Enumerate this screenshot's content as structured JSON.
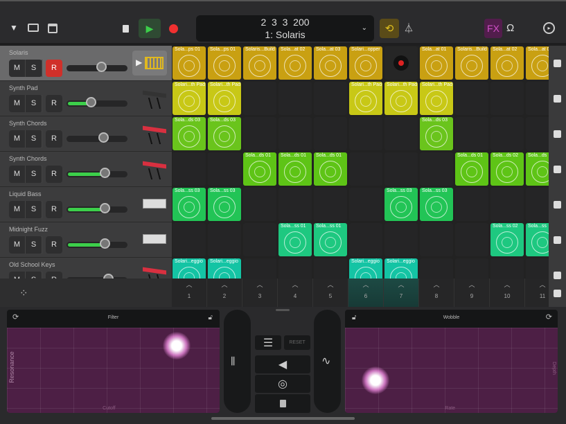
{
  "toolbar": {
    "icons": [
      "browser-triangle-icon",
      "tray-icon",
      "view-icon",
      "stop-icon",
      "play-icon",
      "record-icon",
      "loop-icon",
      "metronome-icon",
      "fx-icon",
      "headphones-icon",
      "settings-icon"
    ],
    "fx_label": "FX",
    "position": "2  3  3  200",
    "song": "1: Solaris",
    "accent": "#3ccf4a"
  },
  "tracks": [
    {
      "name": "Solaris",
      "m": "M",
      "s": "S",
      "r": "R",
      "rec_on": true,
      "volume": 0.57,
      "meter": 0,
      "color": "#c9a012",
      "instrument": "drum-machine-icon"
    },
    {
      "name": "Synth Pad",
      "m": "M",
      "s": "S",
      "r": "R",
      "rec_on": false,
      "volume": 0.4,
      "meter": 0.4,
      "color": "#c8c816",
      "instrument": "keyboard-stand-icon"
    },
    {
      "name": "Synth Chords",
      "m": "M",
      "s": "S",
      "r": "R",
      "rec_on": false,
      "volume": 0.6,
      "meter": 0,
      "color": "#6ac41c",
      "instrument": "red-synth-icon"
    },
    {
      "name": "Synth Chords",
      "m": "M",
      "s": "S",
      "r": "R",
      "rec_on": false,
      "volume": 0.62,
      "meter": 0.62,
      "color": "#5ec416",
      "instrument": "red-synth-icon"
    },
    {
      "name": "Liquid Bass",
      "m": "M",
      "s": "S",
      "r": "R",
      "rec_on": false,
      "volume": 0.62,
      "meter": 0.6,
      "color": "#22c456",
      "instrument": "drum-synth-icon"
    },
    {
      "name": "Midnight Fuzz",
      "m": "M",
      "s": "S",
      "r": "R",
      "rec_on": false,
      "volume": 0.62,
      "meter": 0.62,
      "color": "#1ec880",
      "instrument": "drum-synth-icon"
    },
    {
      "name": "Old School Keys",
      "m": "M",
      "s": "S",
      "r": "R",
      "rec_on": false,
      "volume": 0.68,
      "meter": 0,
      "color": "#14c4a4",
      "instrument": "red-synth-icon"
    }
  ],
  "grid": [
    [
      "Sola...ps 01",
      "Sola...ps 01",
      "Solaris...Build",
      "Sola...at 02",
      "Sola...at 03",
      "Solari...opper",
      "REC",
      "Sola...at 01",
      "Solaris...Build",
      "Sola...at 02",
      "Sola...at 03"
    ],
    [
      "Solari...th Pad",
      "Solari...th Pad",
      null,
      null,
      null,
      "Solari...th Pad",
      "Solari...th Pad",
      "Solari...th Pad",
      null,
      null,
      null
    ],
    [
      "Sola...ds 03",
      "Sola...ds 03",
      null,
      null,
      null,
      null,
      null,
      "Sola...ds 03",
      null,
      null,
      null
    ],
    [
      null,
      null,
      "Sola...ds 01",
      "Sola...ds 01",
      "Sola...ds 01",
      null,
      null,
      null,
      "Sola...ds 01",
      "Sola...ds 02",
      "Sola...ds"
    ],
    [
      "Sola...ss 03",
      "Sola...ss 03",
      null,
      null,
      null,
      null,
      "Sola...ss 03",
      "Sola...ss 03",
      null,
      null,
      null
    ],
    [
      null,
      null,
      null,
      "Sola...ss 01",
      "Sola...ss 01",
      null,
      null,
      null,
      null,
      "Sola...ss 02",
      "Sola...ss"
    ],
    [
      "Solari...eggio",
      "Solari...eggio",
      null,
      null,
      null,
      "Solari...eggio",
      "Solari...eggio",
      null,
      null,
      null,
      null
    ]
  ],
  "columns": [
    "1",
    "2",
    "3",
    "4",
    "5",
    "6",
    "7",
    "8",
    "9",
    "10",
    "11"
  ],
  "playing_columns": [
    6,
    7
  ],
  "fx": {
    "left": {
      "title": "Filter",
      "x_label": "Cutoff",
      "y_label": "Resonance"
    },
    "right": {
      "title": "Wobble",
      "x_label": "Rate",
      "y_label": "Depth"
    },
    "reset_label": "RESET",
    "pad_color": "#4d1f45"
  }
}
